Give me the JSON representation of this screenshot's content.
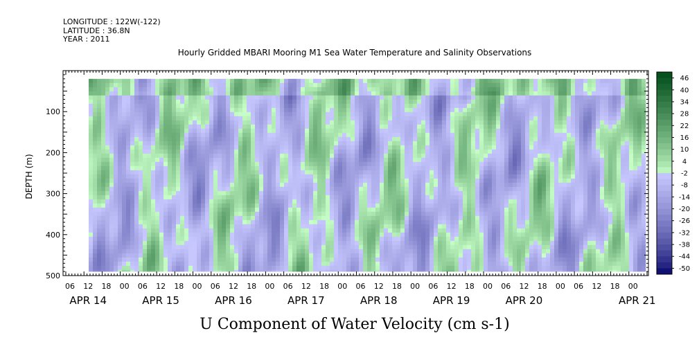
{
  "header": {
    "longitude": "LONGITUDE : 122W(-122)",
    "latitude": "LATITUDE : 36.8N",
    "year": "YEAR : 2011"
  },
  "chart_data": {
    "type": "heatmap",
    "title": "Hourly Gridded MBARI Mooring M1 Sea Water Temperature and Salinity Observations",
    "caption": "U Component of Water Velocity (cm s-1)",
    "ylabel": "DEPTH (m)",
    "y_direction": "inverted",
    "ylim": [
      0,
      500
    ],
    "data_depth_range": [
      20,
      490
    ],
    "y_ticks": [
      100,
      200,
      300,
      400,
      500
    ],
    "x_hour_ticks": [
      "06",
      "12",
      "18",
      "00",
      "06",
      "12",
      "18",
      "00",
      "06",
      "12",
      "18",
      "00",
      "06",
      "12",
      "18",
      "00",
      "06",
      "12",
      "18",
      "00",
      "06",
      "12",
      "18",
      "00",
      "06",
      "12",
      "18",
      "00",
      "06",
      "12",
      "18",
      "00"
    ],
    "x_day_labels": [
      "APR 14",
      "APR 15",
      "APR 16",
      "APR 17",
      "APR 18",
      "APR 19",
      "APR 20",
      "APR 21"
    ],
    "colorbar": {
      "levels": [
        "46",
        "40",
        "34",
        "28",
        "22",
        "16",
        "10",
        "4",
        "-2",
        "-8",
        "-14",
        "-20",
        "-26",
        "-32",
        "-38",
        "-44",
        "-50"
      ],
      "color_min": "#000066",
      "color_mid": "#c8ffc8",
      "color_max": "#004d1a",
      "range": [
        -50,
        52
      ]
    },
    "grid": false,
    "legend": "right-colorbar"
  }
}
